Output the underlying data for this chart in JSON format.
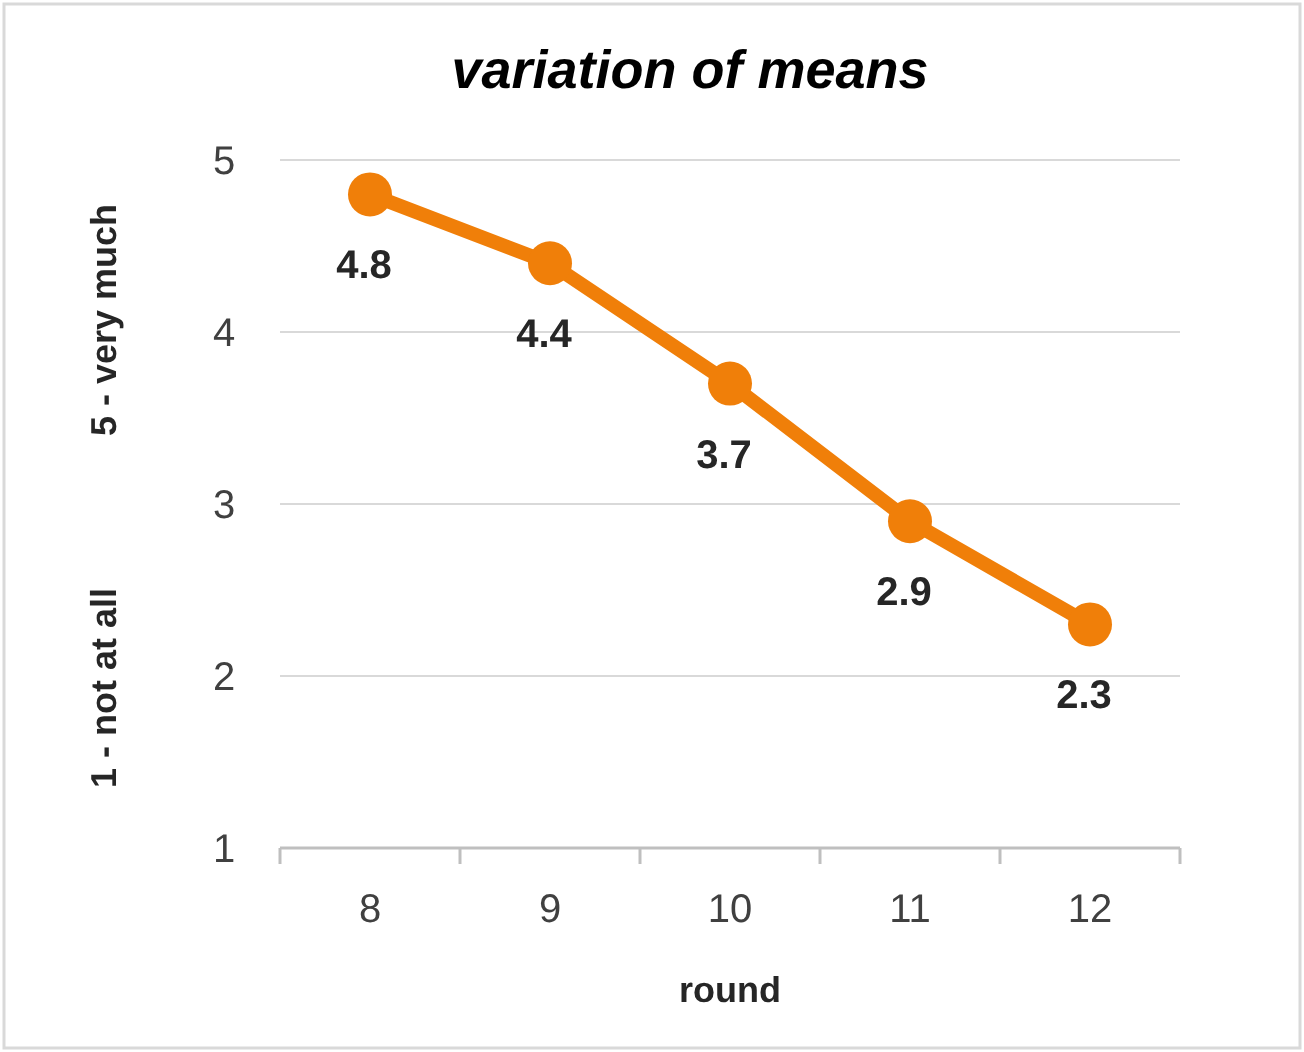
{
  "chart_data": {
    "type": "line",
    "title": "variation of means",
    "xlabel": "round",
    "ylabel": "5 - very much",
    "annotations": [
      "1 - not at all"
    ],
    "categories": [
      "8",
      "9",
      "10",
      "11",
      "12"
    ],
    "series": [
      {
        "color": "#f07f09",
        "values": [
          4.8,
          4.4,
          3.7,
          2.9,
          2.3
        ]
      }
    ],
    "ylim": [
      1,
      5
    ],
    "yticks": [
      1,
      2,
      3,
      4,
      5
    ],
    "grid": "y",
    "marker": "circle",
    "data_labels": true
  }
}
